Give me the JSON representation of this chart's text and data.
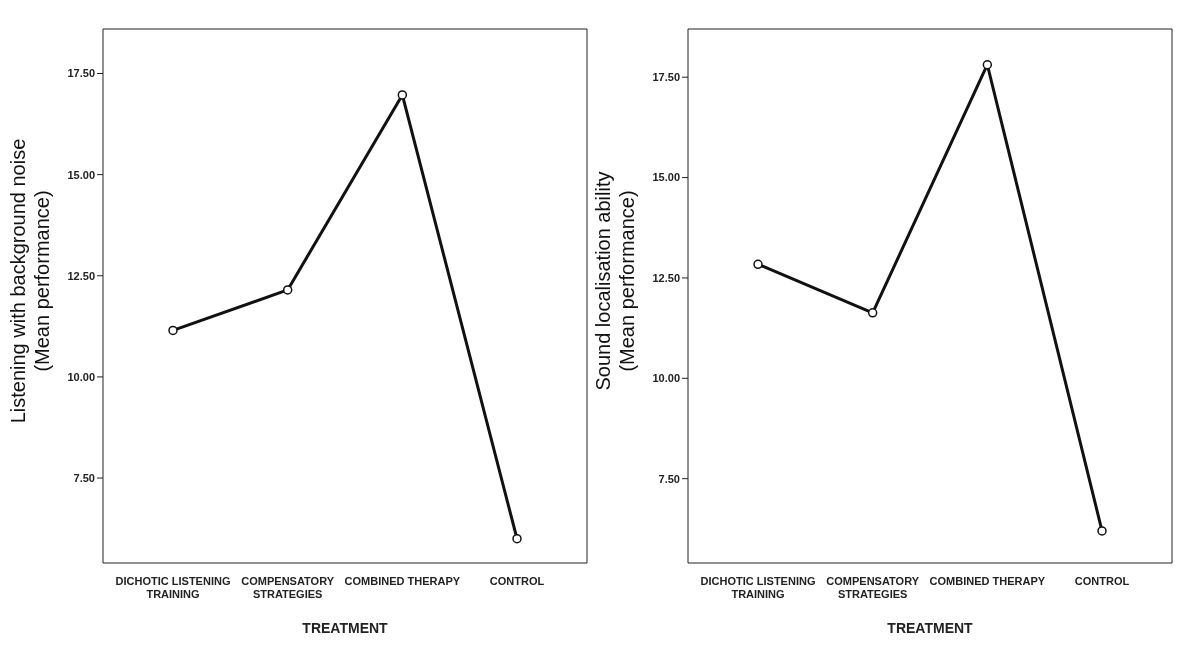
{
  "chart_data": [
    {
      "type": "line",
      "ylabel": "Listening with background noise (Mean performance)",
      "xlabel": "TREATMENT",
      "categories": [
        "DICHOTIC LISTENING TRAINING",
        "COMPENSATORY STRATEGIES",
        "COMBINED THERAPY",
        "CONTROL"
      ],
      "values": [
        11.15,
        12.15,
        16.97,
        6.0
      ],
      "color": "#111111",
      "marker": "circle",
      "ylim": [
        5.4,
        18.6
      ],
      "yticks": [
        {
          "value": 7.5,
          "label": "7.50"
        },
        {
          "value": 10,
          "label": "10.00"
        },
        {
          "value": 12.5,
          "label": "12.50"
        },
        {
          "value": 15,
          "label": "15.00"
        },
        {
          "value": 17.5,
          "label": "17.50"
        }
      ],
      "grid": false,
      "legend": false
    },
    {
      "type": "line",
      "ylabel": "Sound localisation ability (Mean performance)",
      "xlabel": "TREATMENT",
      "categories": [
        "DICHOTIC LISTENING TRAINING",
        "COMPENSATORY STRATEGIES",
        "COMBINED THERAPY",
        "CONTROL"
      ],
      "values": [
        12.84,
        11.63,
        17.81,
        6.2
      ],
      "color": "#111111",
      "marker": "circle",
      "ylim": [
        5.4,
        18.7
      ],
      "yticks": [
        {
          "value": 7.5,
          "label": "7.50"
        },
        {
          "value": 10,
          "label": "10.00"
        },
        {
          "value": 12.5,
          "label": "12.50"
        },
        {
          "value": 15,
          "label": "15.00"
        },
        {
          "value": 17.5,
          "label": "17.50"
        }
      ],
      "grid": false,
      "legend": false
    }
  ]
}
